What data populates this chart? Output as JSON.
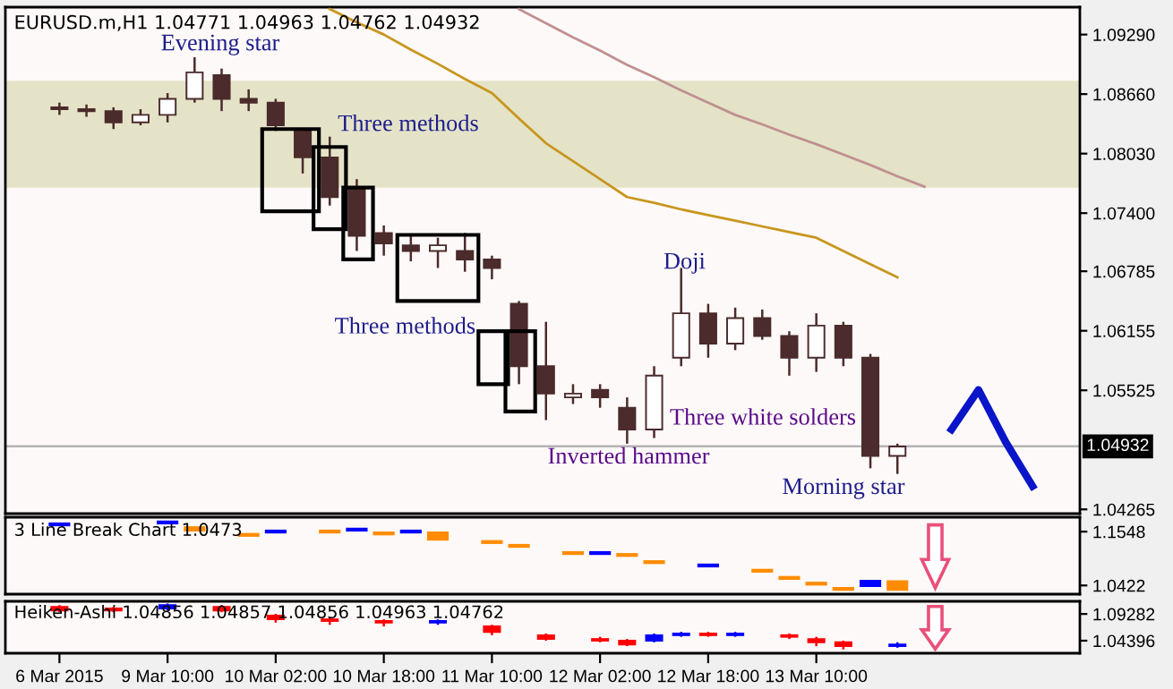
{
  "chart_data": [
    {
      "type": "candlestick",
      "title": "EURUSD.m,H1 1.04771 1.04963 1.04762 1.04932",
      "color": "#4b2b2b",
      "ohlc": [
        [
          1.0852,
          1.0857,
          1.0844,
          1.085
        ],
        [
          1.085,
          1.0855,
          1.0842,
          1.0848
        ],
        [
          1.0848,
          1.0852,
          1.0829,
          1.0836
        ],
        [
          1.0836,
          1.085,
          1.0833,
          1.0844
        ],
        [
          1.0844,
          1.0867,
          1.0836,
          1.0861
        ],
        [
          1.0861,
          1.0905,
          1.0857,
          1.0889
        ],
        [
          1.0886,
          1.0893,
          1.0848,
          1.0861
        ],
        [
          1.0861,
          1.0871,
          1.0848,
          1.0857
        ],
        [
          1.0857,
          1.0861,
          1.0827,
          1.0833
        ],
        [
          1.0829,
          1.0829,
          1.0782,
          1.0799
        ],
        [
          1.0799,
          1.0821,
          1.0748,
          1.0757
        ],
        [
          1.0765,
          1.0776,
          1.07,
          1.0716
        ],
        [
          1.0719,
          1.0727,
          1.0695,
          1.0708
        ],
        [
          1.0706,
          1.0716,
          1.0689,
          1.07
        ],
        [
          1.07,
          1.0714,
          1.0682,
          1.0706
        ],
        [
          1.07,
          1.0719,
          1.0678,
          1.0691
        ],
        [
          1.0691,
          1.0695,
          1.067,
          1.0682
        ],
        [
          1.0644,
          1.0647,
          1.0559,
          1.0578
        ],
        [
          1.0578,
          1.0625,
          1.0521,
          1.0549
        ],
        [
          1.0545,
          1.0559,
          1.0538,
          1.0549
        ],
        [
          1.0553,
          1.0559,
          1.0534,
          1.0545
        ],
        [
          1.0534,
          1.0545,
          1.0496,
          1.0511
        ],
        [
          1.0511,
          1.0578,
          1.0502,
          1.0568
        ],
        [
          1.0587,
          1.0682,
          1.0578,
          1.0634
        ],
        [
          1.0634,
          1.0644,
          1.0587,
          1.0602
        ],
        [
          1.0602,
          1.064,
          1.0595,
          1.0629
        ],
        [
          1.0629,
          1.0638,
          1.0606,
          1.061
        ],
        [
          1.061,
          1.0615,
          1.0568,
          1.0587
        ],
        [
          1.0587,
          1.0634,
          1.0572,
          1.0621
        ],
        [
          1.0621,
          1.0625,
          1.0578,
          1.0587
        ],
        [
          1.0587,
          1.0591,
          1.047,
          1.0483
        ],
        [
          1.0483,
          1.0496,
          1.0464,
          1.0493
        ],
        null,
        null,
        null,
        null,
        null,
        null
      ],
      "series": [
        {
          "type": "line",
          "color": "#c09090",
          "values": [
            null,
            null,
            null,
            null,
            null,
            null,
            null,
            null,
            null,
            null,
            null,
            null,
            null,
            null,
            null,
            null,
            null,
            1.0956,
            1.0941,
            1.0926,
            1.0912,
            1.0897,
            1.0884,
            1.087,
            1.0857,
            1.0844,
            1.0834,
            1.0823,
            1.0813,
            1.0802,
            1.0791,
            1.0779,
            1.0768,
            null,
            null,
            null,
            null,
            null
          ]
        },
        {
          "type": "line",
          "color": "#c8961e",
          "values": [
            null,
            null,
            null,
            null,
            null,
            null,
            null,
            null,
            null,
            null,
            1.0956,
            1.0942,
            1.0929,
            1.0913,
            1.0898,
            1.0882,
            1.0867,
            1.084,
            1.0814,
            1.0795,
            1.0776,
            1.0757,
            1.0751,
            1.0744,
            1.0738,
            1.0732,
            1.0726,
            1.072,
            1.0714,
            1.07,
            1.0686,
            1.0672,
            null,
            null,
            null,
            null,
            null,
            null
          ]
        },
        {
          "type": "line",
          "color": "#0a14c8",
          "values": [
            null,
            null,
            null,
            null,
            null,
            null,
            null,
            null,
            null,
            null,
            null,
            null,
            null,
            null,
            null,
            null,
            null,
            null,
            null,
            null,
            null,
            null,
            null,
            null,
            null,
            null,
            null,
            null,
            null,
            null,
            null,
            null,
            null,
            1.0511,
            1.0553,
            1.0498,
            1.0451,
            null
          ]
        }
      ],
      "bands": [
        {
          "axis": "y",
          "from": 1.0767,
          "to": 1.088,
          "color": "#e4e3c8"
        }
      ],
      "ref_lines": [
        {
          "axis": "y",
          "value": 1.04932,
          "label": "1.04932",
          "color": "#b4b4b4"
        }
      ],
      "annotations": [
        "Evening star",
        "Three methods",
        "Three methods",
        "Doji",
        "Three white solders",
        "Inverted hammer",
        "Morning star"
      ],
      "ylim": [
        1.0422,
        1.0958
      ],
      "yticks": [
        {
          "value": 1.0929,
          "label": "1.09290"
        },
        {
          "value": 1.0866,
          "label": "1.08660"
        },
        {
          "value": 1.0803,
          "label": "1.08030"
        },
        {
          "value": 1.074,
          "label": "1.07400"
        },
        {
          "value": 1.06785,
          "label": "1.06785"
        },
        {
          "value": 1.06155,
          "label": "1.06155"
        },
        {
          "value": 1.05525,
          "label": "1.05525"
        },
        {
          "value": 1.04265,
          "label": "1.04265"
        }
      ],
      "grid": false,
      "legend": false
    },
    {
      "type": "bar",
      "title": "3 Line Break Chart 1.0473",
      "base": [
        1.166,
        null,
        null,
        null,
        1.17,
        1.155,
        null,
        1.144,
        1.151,
        null,
        1.151,
        1.155,
        1.147,
        1.151,
        1.136,
        null,
        1.129,
        1.121,
        null,
        1.106,
        1.106,
        1.102,
        1.087,
        null,
        1.08,
        null,
        1.069,
        1.054,
        1.042,
        1.031,
        1.039,
        1.031,
        null,
        null,
        null,
        null,
        null,
        null
      ],
      "values": [
        0.008,
        null,
        null,
        null,
        0.008,
        0.011,
        null,
        0.008,
        0.008,
        null,
        0.008,
        0.008,
        0.008,
        0.008,
        0.019,
        null,
        0.008,
        0.008,
        null,
        0.008,
        0.008,
        0.008,
        0.008,
        null,
        0.008,
        null,
        0.008,
        0.008,
        0.008,
        0.008,
        0.015,
        0.022,
        null,
        null,
        null,
        null,
        null,
        null
      ],
      "colors": [
        "#0000ff",
        null,
        null,
        null,
        "#0000ff",
        "#ff8c00",
        null,
        "#ff8c00",
        "#0000ff",
        null,
        "#ff8c00",
        "#0000ff",
        "#ff8c00",
        "#0000ff",
        "#ff8c00",
        null,
        "#ff8c00",
        "#ff8c00",
        null,
        "#ff8c00",
        "#0000ff",
        "#ff8c00",
        "#ff8c00",
        null,
        "#0000ff",
        null,
        "#ff8c00",
        "#ff8c00",
        "#ff8c00",
        "#ff8c00",
        "#0000ff",
        "#ff8c00",
        null,
        null,
        null,
        null,
        null,
        null
      ],
      "ylim": [
        1.024,
        1.185
      ],
      "yticks": [
        1.1548,
        1.0422
      ],
      "grid": false,
      "legend": false
    },
    {
      "type": "candlestick",
      "title": "Heiken-Ashi 1.04856 1.04857 1.04856 1.04963 1.04762",
      "categories": [
        "6 Mar 2015",
        null,
        null,
        null,
        "9 Mar 10:00",
        null,
        null,
        null,
        "10 Mar 02:00",
        null,
        null,
        null,
        "10 Mar 18:00",
        null,
        null,
        null,
        "11 Mar 10:00",
        null,
        null,
        null,
        "12 Mar 02:00",
        null,
        null,
        null,
        "12 Mar 18:00",
        null,
        null,
        null,
        "13 Mar 10:00",
        null,
        null,
        null,
        null,
        null,
        null,
        null,
        null,
        null
      ],
      "ohlc": [
        [
          1.106,
          1.109,
          1.096,
          1.099
        ],
        null,
        [
          1.103,
          1.106,
          1.096,
          1.099
        ],
        null,
        [
          1.103,
          1.112,
          1.099,
          1.109
        ],
        null,
        [
          1.106,
          1.109,
          1.096,
          1.099
        ],
        null,
        [
          1.09,
          1.093,
          1.077,
          1.083
        ],
        null,
        [
          1.083,
          1.086,
          1.073,
          1.08
        ],
        null,
        [
          1.08,
          1.083,
          1.07,
          1.077
        ],
        null,
        [
          1.077,
          1.083,
          1.073,
          1.08
        ],
        null,
        [
          1.07,
          1.073,
          1.054,
          1.06
        ],
        null,
        [
          1.054,
          1.057,
          1.044,
          1.047
        ],
        null,
        [
          1.047,
          1.051,
          1.041,
          1.044
        ],
        [
          1.044,
          1.047,
          1.034,
          1.037
        ],
        [
          1.044,
          1.057,
          1.041,
          1.054
        ],
        [
          1.054,
          1.06,
          1.051,
          1.057
        ],
        [
          1.057,
          1.06,
          1.051,
          1.054
        ],
        [
          1.054,
          1.06,
          1.051,
          1.057
        ],
        null,
        [
          1.054,
          1.057,
          1.047,
          1.051
        ],
        [
          1.047,
          1.051,
          1.034,
          1.041
        ],
        [
          1.041,
          1.044,
          1.028,
          1.034
        ],
        null,
        [
          1.034,
          1.041,
          1.031,
          1.037
        ],
        null,
        null,
        null,
        null,
        null,
        null
      ],
      "colors": [
        "#ff0000",
        null,
        "#ff0000",
        null,
        "#0000ff",
        null,
        "#ff0000",
        null,
        "#ff0000",
        null,
        "#ff0000",
        null,
        "#ff0000",
        null,
        "#0000ff",
        null,
        "#ff0000",
        null,
        "#ff0000",
        null,
        "#ff0000",
        "#ff0000",
        "#0000ff",
        "#0000ff",
        "#ff0000",
        "#0000ff",
        null,
        "#ff0000",
        "#ff0000",
        "#ff0000",
        null,
        "#0000ff",
        null,
        null,
        null,
        null,
        null,
        null
      ],
      "ylim": [
        1.021,
        1.116
      ],
      "yticks": [
        {
          "value": 1.09282,
          "label": "1.09282"
        },
        {
          "value": 1.04396,
          "label": "1.04396"
        }
      ],
      "grid": false,
      "legend": false
    }
  ]
}
